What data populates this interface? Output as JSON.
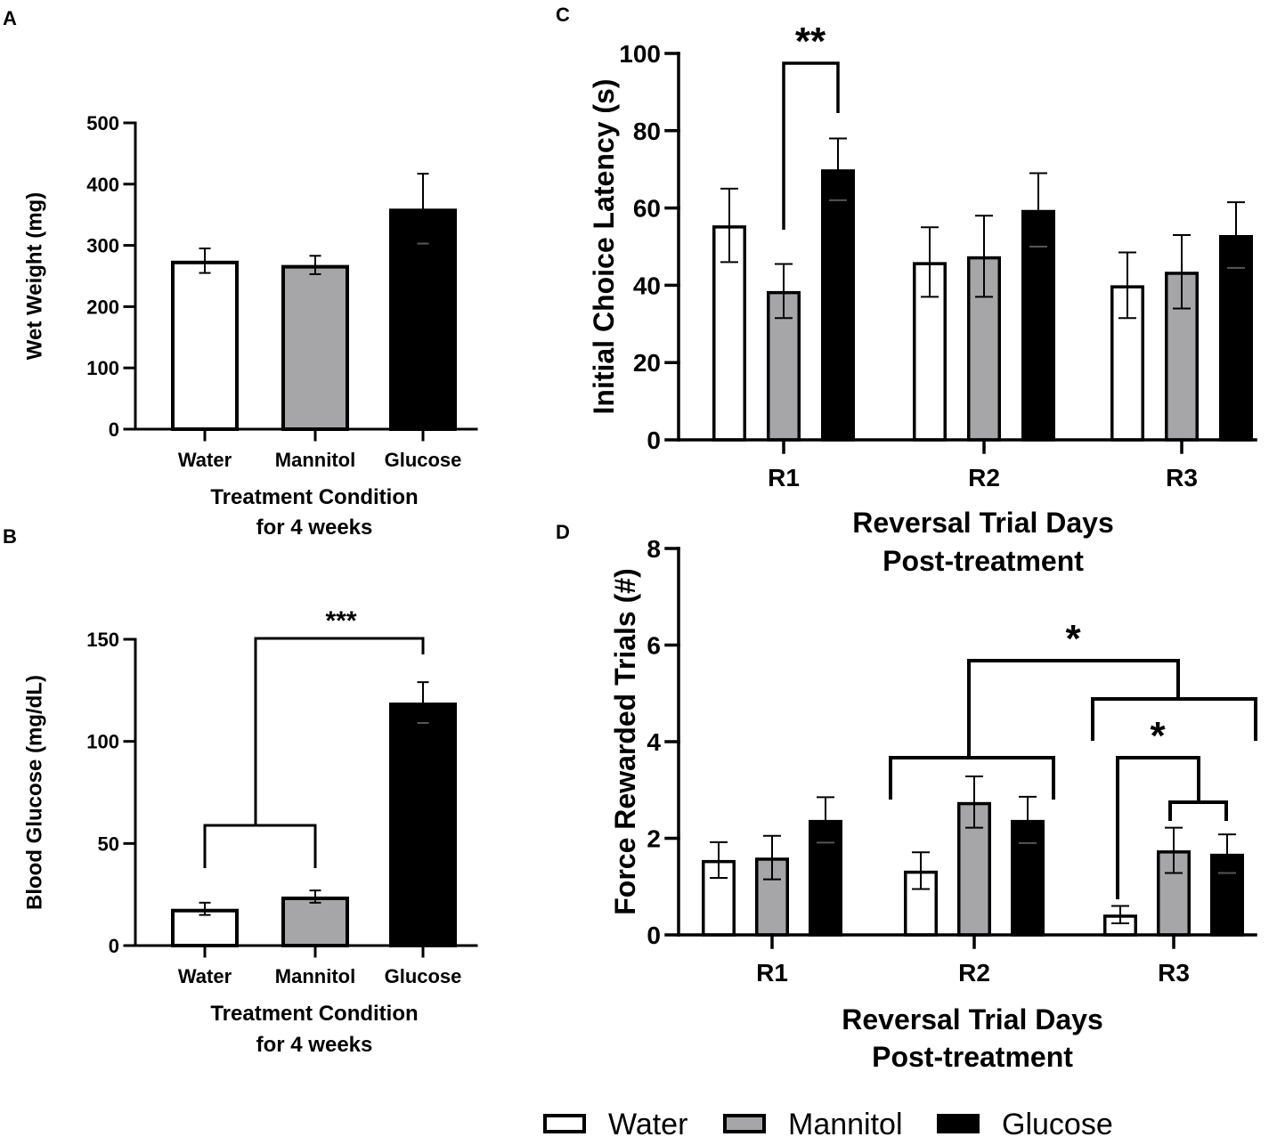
{
  "colors": {
    "Water": "#ffffff",
    "Mannitol": "#a6a6a8",
    "Glucose": "#000000",
    "ink": "#000000"
  },
  "legend": {
    "items": [
      {
        "label": "Water",
        "color": "#ffffff"
      },
      {
        "label": "Mannitol",
        "color": "#a6a6a8"
      },
      {
        "label": "Glucose",
        "color": "#000000"
      }
    ]
  },
  "chart_data": [
    {
      "id": "A",
      "panel_label": "A",
      "type": "bar",
      "categories": [
        "Water",
        "Mannitol",
        "Glucose"
      ],
      "values": [
        275,
        268,
        360
      ],
      "errors": [
        20,
        15,
        57
      ],
      "ylim": [
        0,
        500
      ],
      "yticks": [
        0,
        100,
        200,
        300,
        400,
        500
      ],
      "ylabel": "Wet Weight (mg)",
      "xlabel": [
        "Treatment Condition",
        "for 4 weeks"
      ],
      "significance": []
    },
    {
      "id": "B",
      "panel_label": "B",
      "type": "bar",
      "categories": [
        "Water",
        "Mannitol",
        "Glucose"
      ],
      "values": [
        18,
        24,
        119
      ],
      "errors": [
        3,
        3,
        10
      ],
      "ylim": [
        0,
        150
      ],
      "yticks": [
        0,
        50,
        100,
        150
      ],
      "ylabel": "Blood Glucose (mg/dL)",
      "xlabel": [
        "Treatment Condition",
        "for 4 weeks"
      ],
      "significance": [
        {
          "label": "***",
          "from": "Water+Mannitol",
          "to": "Glucose"
        }
      ]
    },
    {
      "id": "C",
      "panel_label": "C",
      "type": "bar",
      "categories": [
        "R1",
        "R2",
        "R3"
      ],
      "series": [
        {
          "name": "Water",
          "values": [
            55.5,
            46,
            40
          ],
          "errors": [
            9.5,
            9,
            8.5
          ]
        },
        {
          "name": "Mannitol",
          "values": [
            38.5,
            47.5,
            43.5
          ],
          "errors": [
            7,
            10.5,
            9.5
          ]
        },
        {
          "name": "Glucose",
          "values": [
            70,
            59.5,
            53
          ],
          "errors": [
            8,
            9.5,
            8.5
          ]
        }
      ],
      "ylim": [
        0,
        100
      ],
      "yticks": [
        0,
        20,
        40,
        60,
        80,
        100
      ],
      "ylabel": "Initial Choice Latency (s)",
      "xlabel": [
        "Reversal Trial Days",
        "Post-treatment"
      ],
      "significance": [
        {
          "label": "**",
          "from": "R1 Mannitol",
          "to": "R1 Glucose"
        }
      ]
    },
    {
      "id": "D",
      "panel_label": "D",
      "type": "bar",
      "categories": [
        "R1",
        "R2",
        "R3"
      ],
      "series": [
        {
          "name": "Water",
          "values": [
            1.55,
            1.33,
            0.42
          ],
          "errors": [
            0.37,
            0.38,
            0.18
          ]
        },
        {
          "name": "Mannitol",
          "values": [
            1.6,
            2.75,
            1.75
          ],
          "errors": [
            0.45,
            0.53,
            0.47
          ]
        },
        {
          "name": "Glucose",
          "values": [
            2.38,
            2.38,
            1.68
          ],
          "errors": [
            0.47,
            0.48,
            0.4
          ]
        }
      ],
      "ylim": [
        0,
        8
      ],
      "yticks": [
        0,
        2,
        4,
        6,
        8
      ],
      "ylabel": "Force Rewarded Trials (#)",
      "xlabel": [
        "Reversal Trial Days",
        "Post-treatment"
      ],
      "significance": [
        {
          "label": "*",
          "from": "R2",
          "to": "R3"
        },
        {
          "label": "*",
          "from": "R3 Water",
          "to": "R3 Mannitol+Glucose"
        }
      ]
    }
  ]
}
